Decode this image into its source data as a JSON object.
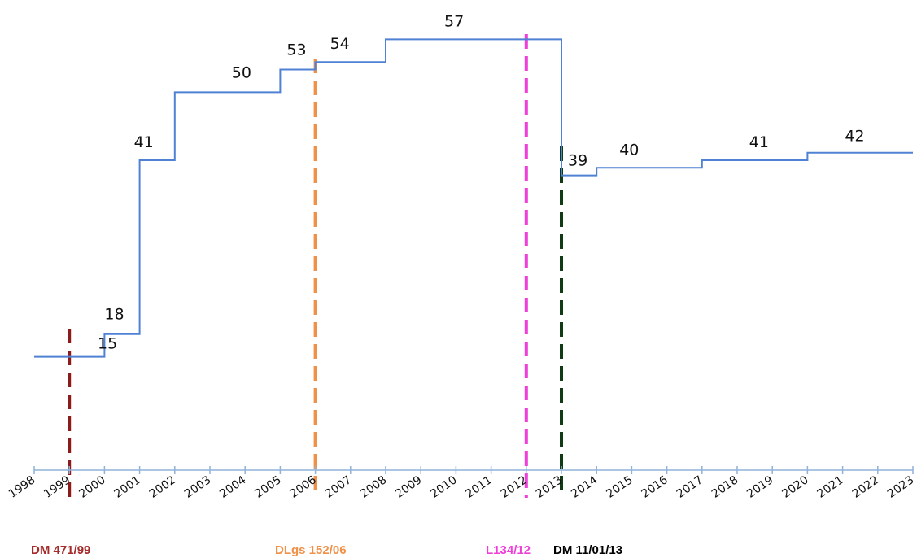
{
  "chart_data": {
    "type": "line",
    "step": true,
    "x": [
      1998,
      2000,
      2001,
      2002,
      2005,
      2006,
      2008,
      2013,
      2014,
      2017,
      2020,
      2023
    ],
    "values": [
      15,
      18,
      41,
      50,
      53,
      54,
      57,
      39,
      40,
      41,
      42,
      42
    ],
    "step_labels": [
      {
        "x": 1998,
        "text": "15"
      },
      {
        "x": 2000,
        "text": "18"
      },
      {
        "x": 2001,
        "text": "41"
      },
      {
        "x": 2002,
        "text": "50"
      },
      {
        "x": 2005,
        "text": "53"
      },
      {
        "x": 2006,
        "text": "54"
      },
      {
        "x": 2008,
        "text": "57"
      },
      {
        "x": 2013,
        "text": "39"
      },
      {
        "x": 2014,
        "text": "40"
      },
      {
        "x": 2017,
        "text": "41"
      },
      {
        "x": 2020,
        "text": "42"
      }
    ],
    "xlim": [
      1998,
      2023
    ],
    "ylim": [
      0,
      58
    ],
    "x_ticks": [
      "1998",
      "1999",
      "2000",
      "2001",
      "2002",
      "2003",
      "2004",
      "2005",
      "2006",
      "2007",
      "2008",
      "2009",
      "2010",
      "2011",
      "2012",
      "2013",
      "2014",
      "2015",
      "2016",
      "2017",
      "2018",
      "2019",
      "2020",
      "2021",
      "2022",
      "2023"
    ],
    "grid": false,
    "line_color": "#4f81d4",
    "axis_color": "#8fb3d9",
    "events": [
      {
        "x": 1999,
        "label": "DM 471/99",
        "color": "#8b1a1a"
      },
      {
        "x": 2006,
        "label": "DLgs 152/06",
        "color": "#f0914a"
      },
      {
        "x": 2012,
        "label": "L134/12",
        "color": "#ee3fd8"
      },
      {
        "x": 2013,
        "label": "DM 11/01/13",
        "color": "#0f3a14"
      }
    ],
    "event_label_text_colors": [
      "#a52a2a",
      "#f0914a",
      "#ee3fd8",
      "#000000"
    ]
  }
}
